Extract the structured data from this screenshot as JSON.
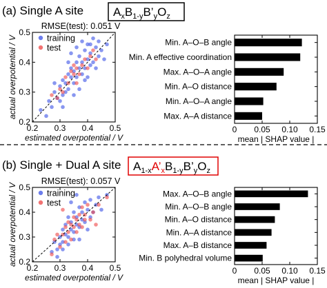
{
  "panels": [
    {
      "label": "(a) Single A site",
      "formula": [
        {
          "t": "A",
          "s": "n"
        },
        {
          "t": "x",
          "s": "sub"
        },
        {
          "t": "B",
          "s": "n"
        },
        {
          "t": "1-y",
          "s": "sub"
        },
        {
          "t": "B’",
          "s": "n"
        },
        {
          "t": "y",
          "s": "sub"
        },
        {
          "t": "O",
          "s": "n"
        },
        {
          "t": "z",
          "s": "sub"
        }
      ],
      "formula_box_color": "#000000"
    },
    {
      "label": "(b) Single + Dual A site",
      "formula": [
        {
          "t": "A",
          "s": "n"
        },
        {
          "t": "1-x",
          "s": "sub"
        },
        {
          "t": "A’",
          "s": "red"
        },
        {
          "t": "x",
          "s": "subred"
        },
        {
          "t": "B",
          "s": "n"
        },
        {
          "t": "1-y",
          "s": "sub"
        },
        {
          "t": "B’",
          "s": "n"
        },
        {
          "t": "y",
          "s": "sub"
        },
        {
          "t": "O",
          "s": "n"
        },
        {
          "t": "z",
          "s": "sub"
        }
      ],
      "formula_box_color": "#e00000"
    }
  ],
  "colors": {
    "training": "#3b52e6",
    "test": "#ee4444",
    "bar": "#000000",
    "highlight": "#e00000"
  },
  "chart_data": [
    {
      "type": "scatter",
      "title": "RMSE(test): 0.051 V",
      "xlabel": "estimated overpotential / V",
      "ylabel": "actual overpotential / V",
      "xlim": [
        0.2,
        0.5
      ],
      "ylim": [
        0.2,
        0.5
      ],
      "xticks": [
        "0.2",
        "0.3",
        "0.4",
        "0.5"
      ],
      "yticks": [
        "0.2",
        "0.3",
        "0.4",
        "0.5"
      ],
      "reference_line": "y = x (dashed)",
      "legend": "top-left",
      "series": [
        {
          "name": "training",
          "points": [
            [
              0.23,
              0.24
            ],
            [
              0.25,
              0.22
            ],
            [
              0.26,
              0.27
            ],
            [
              0.27,
              0.25
            ],
            [
              0.28,
              0.3
            ],
            [
              0.29,
              0.28
            ],
            [
              0.3,
              0.32
            ],
            [
              0.3,
              0.27
            ],
            [
              0.31,
              0.34
            ],
            [
              0.31,
              0.29
            ],
            [
              0.32,
              0.33
            ],
            [
              0.32,
              0.3
            ],
            [
              0.33,
              0.36
            ],
            [
              0.33,
              0.31
            ],
            [
              0.34,
              0.35
            ],
            [
              0.34,
              0.38
            ],
            [
              0.35,
              0.33
            ],
            [
              0.35,
              0.37
            ],
            [
              0.36,
              0.4
            ],
            [
              0.36,
              0.35
            ],
            [
              0.37,
              0.38
            ],
            [
              0.37,
              0.42
            ],
            [
              0.38,
              0.36
            ],
            [
              0.38,
              0.4
            ],
            [
              0.39,
              0.44
            ],
            [
              0.39,
              0.38
            ],
            [
              0.4,
              0.41
            ],
            [
              0.4,
              0.46
            ],
            [
              0.41,
              0.39
            ],
            [
              0.41,
              0.43
            ],
            [
              0.42,
              0.48
            ],
            [
              0.42,
              0.4
            ],
            [
              0.43,
              0.45
            ],
            [
              0.44,
              0.42
            ],
            [
              0.44,
              0.47
            ],
            [
              0.45,
              0.44
            ],
            [
              0.46,
              0.41
            ],
            [
              0.47,
              0.46
            ],
            [
              0.38,
              0.47
            ],
            [
              0.34,
              0.43
            ],
            [
              0.36,
              0.45
            ],
            [
              0.31,
              0.25
            ],
            [
              0.28,
              0.33
            ],
            [
              0.4,
              0.35
            ],
            [
              0.33,
              0.4
            ],
            [
              0.43,
              0.38
            ],
            [
              0.35,
              0.29
            ],
            [
              0.39,
              0.34
            ],
            [
              0.41,
              0.46
            ],
            [
              0.37,
              0.31
            ]
          ]
        },
        {
          "name": "test",
          "points": [
            [
              0.27,
              0.29
            ],
            [
              0.3,
              0.31
            ],
            [
              0.32,
              0.35
            ],
            [
              0.33,
              0.33
            ],
            [
              0.34,
              0.37
            ],
            [
              0.35,
              0.36
            ],
            [
              0.36,
              0.38
            ],
            [
              0.37,
              0.36
            ],
            [
              0.38,
              0.39
            ],
            [
              0.39,
              0.41
            ],
            [
              0.4,
              0.38
            ],
            [
              0.41,
              0.42
            ],
            [
              0.42,
              0.44
            ],
            [
              0.36,
              0.33
            ],
            [
              0.31,
              0.3
            ],
            [
              0.43,
              0.41
            ],
            [
              0.35,
              0.39
            ],
            [
              0.29,
              0.28
            ]
          ]
        }
      ]
    },
    {
      "type": "bar",
      "orientation": "horizontal",
      "categories": [
        "Min. A–O–B angle",
        "Min. A effective coordination",
        "Max. A–O–A angle",
        "Min. A–O distance",
        "Min. A–O–A angle",
        "Max. A–A distance"
      ],
      "values": [
        0.122,
        0.119,
        0.089,
        0.076,
        0.052,
        0.05
      ],
      "xlabel": "mean | SHAP value |",
      "xlim": [
        0,
        0.15
      ],
      "xticks": [
        "0",
        "0.05",
        "0.10",
        "0.15"
      ]
    },
    {
      "type": "scatter",
      "title": "RMSE(test): 0.057 V",
      "xlabel": "estimated overpotential / V",
      "ylabel": "actual overpotential / V",
      "xlim": [
        0.2,
        0.5
      ],
      "ylim": [
        0.2,
        0.5
      ],
      "xticks": [
        "0.2",
        "0.3",
        "0.4",
        "0.5"
      ],
      "yticks": [
        "0.2",
        "0.3",
        "0.4",
        "0.5"
      ],
      "reference_line": "y = x (dashed)",
      "legend": "top-left",
      "series": [
        {
          "name": "training",
          "points": [
            [
              0.27,
              0.24
            ],
            [
              0.28,
              0.28
            ],
            [
              0.29,
              0.25
            ],
            [
              0.3,
              0.3
            ],
            [
              0.3,
              0.27
            ],
            [
              0.31,
              0.33
            ],
            [
              0.31,
              0.28
            ],
            [
              0.32,
              0.31
            ],
            [
              0.32,
              0.35
            ],
            [
              0.33,
              0.3
            ],
            [
              0.33,
              0.38
            ],
            [
              0.34,
              0.33
            ],
            [
              0.34,
              0.36
            ],
            [
              0.35,
              0.32
            ],
            [
              0.35,
              0.4
            ],
            [
              0.36,
              0.35
            ],
            [
              0.36,
              0.38
            ],
            [
              0.37,
              0.34
            ],
            [
              0.37,
              0.42
            ],
            [
              0.38,
              0.37
            ],
            [
              0.38,
              0.4
            ],
            [
              0.39,
              0.44
            ],
            [
              0.39,
              0.36
            ],
            [
              0.4,
              0.41
            ],
            [
              0.41,
              0.38
            ],
            [
              0.41,
              0.45
            ],
            [
              0.42,
              0.4
            ],
            [
              0.43,
              0.43
            ],
            [
              0.44,
              0.46
            ],
            [
              0.45,
              0.41
            ],
            [
              0.47,
              0.47
            ],
            [
              0.31,
              0.25
            ],
            [
              0.33,
              0.27
            ],
            [
              0.29,
              0.22
            ],
            [
              0.35,
              0.29
            ],
            [
              0.4,
              0.33
            ],
            [
              0.34,
              0.44
            ],
            [
              0.37,
              0.29
            ],
            [
              0.36,
              0.47
            ]
          ]
        },
        {
          "name": "test",
          "points": [
            [
              0.28,
              0.29
            ],
            [
              0.29,
              0.31
            ],
            [
              0.3,
              0.26
            ],
            [
              0.31,
              0.31
            ],
            [
              0.32,
              0.34
            ],
            [
              0.32,
              0.28
            ],
            [
              0.33,
              0.36
            ],
            [
              0.33,
              0.32
            ],
            [
              0.34,
              0.35
            ],
            [
              0.34,
              0.29
            ],
            [
              0.35,
              0.38
            ],
            [
              0.35,
              0.34
            ],
            [
              0.36,
              0.37
            ],
            [
              0.36,
              0.32
            ],
            [
              0.37,
              0.39
            ],
            [
              0.37,
              0.35
            ],
            [
              0.38,
              0.42
            ],
            [
              0.38,
              0.34
            ],
            [
              0.39,
              0.39
            ],
            [
              0.39,
              0.37
            ],
            [
              0.4,
              0.43
            ],
            [
              0.41,
              0.37
            ],
            [
              0.42,
              0.4
            ],
            [
              0.44,
              0.43
            ],
            [
              0.47,
              0.46
            ],
            [
              0.27,
              0.23
            ],
            [
              0.31,
              0.41
            ],
            [
              0.43,
              0.35
            ]
          ]
        }
      ]
    },
    {
      "type": "bar",
      "orientation": "horizontal",
      "categories": [
        "Max. A–O–B angle",
        "Min. A–O–B angle",
        "Min. A–O distance",
        "Min. A–A distance",
        "Max. A–B distance",
        "Min. B polyhedral volume"
      ],
      "values": [
        0.133,
        0.082,
        0.073,
        0.067,
        0.058,
        0.051
      ],
      "xlabel": "mean | SHAP value |",
      "xlim": [
        0,
        0.15
      ],
      "xticks": [
        "0",
        "0.05",
        "0.10",
        "0.15"
      ]
    }
  ]
}
